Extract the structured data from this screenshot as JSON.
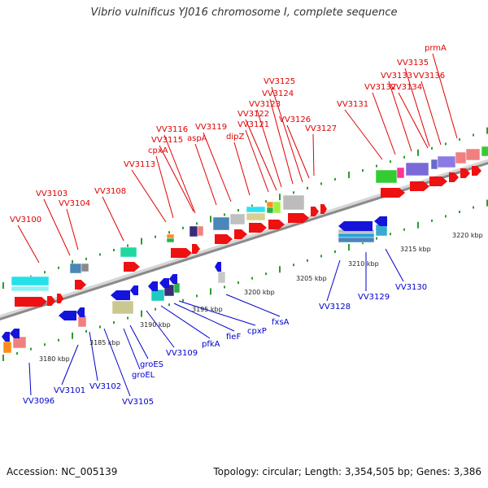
{
  "title": "Vibrio vulnificus YJ016 chromosome I, complete sequence",
  "footer": {
    "accession": "Accession: NC_005139",
    "stats": "Topology: circular; Length: 3,354,505 bp; Genes: 3,386"
  },
  "colors": {
    "forward_label": "#e00000",
    "reverse_label": "#0000cc",
    "backbone": "#8a8a8a",
    "tick": "#2e9a2e"
  },
  "scale_labels": [
    "3180 kbp",
    "3185 kbp",
    "3190 kbp",
    "3195 kbp",
    "3200 kbp",
    "3205 kbp",
    "3210 kbp",
    "3215 kbp",
    "3220 kbp"
  ],
  "forward_genes": [
    "VV3100",
    "VV3103",
    "VV3104",
    "VV3108",
    "VV3113",
    "cpxA",
    "VV3115",
    "VV3116",
    "aspA",
    "VV3119",
    "dipZ",
    "VV3121",
    "VV3122",
    "VV3123",
    "VV3124",
    "VV3125",
    "VV3126",
    "VV3127",
    "VV3131",
    "VV3132",
    "VV3133",
    "VV3134",
    "VV3135",
    "VV3136",
    "prmA"
  ],
  "reverse_genes": [
    "VV3096",
    "VV3101",
    "VV3102",
    "VV3105",
    "groEL",
    "groES",
    "VV3109",
    "pfkA",
    "fieF",
    "cpxP",
    "fxsA",
    "VV3128",
    "VV3129",
    "VV3130"
  ]
}
